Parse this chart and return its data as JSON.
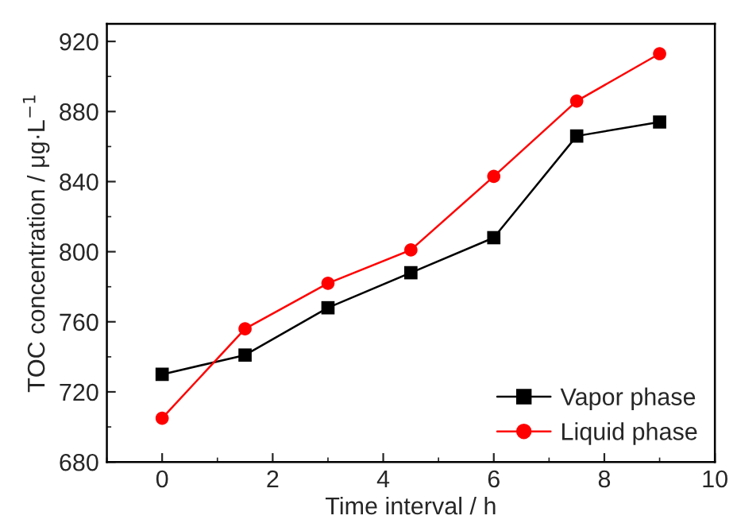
{
  "chart_data": {
    "type": "line",
    "xlabel": "Time interval / h",
    "ylabel": "TOC concentration / μg·L$^{−1}$",
    "x": [
      0,
      1.5,
      3,
      4.5,
      6,
      7.5,
      9
    ],
    "series": [
      {
        "name": "Vapor phase",
        "color": "#000000",
        "marker": "square",
        "values": [
          730,
          741,
          768,
          788,
          808,
          866,
          874
        ]
      },
      {
        "name": "Liquid phase",
        "color": "#ff0000",
        "marker": "circle",
        "values": [
          705,
          756,
          782,
          801,
          843,
          886,
          913
        ]
      }
    ],
    "xlim": [
      -1,
      10
    ],
    "xticks": [
      0,
      2,
      4,
      6,
      8,
      10
    ],
    "ylim": [
      680,
      930
    ],
    "yticks": [
      680,
      720,
      760,
      800,
      840,
      880,
      920
    ],
    "grid": false,
    "legend": "bottom right",
    "line_style": "solid"
  }
}
